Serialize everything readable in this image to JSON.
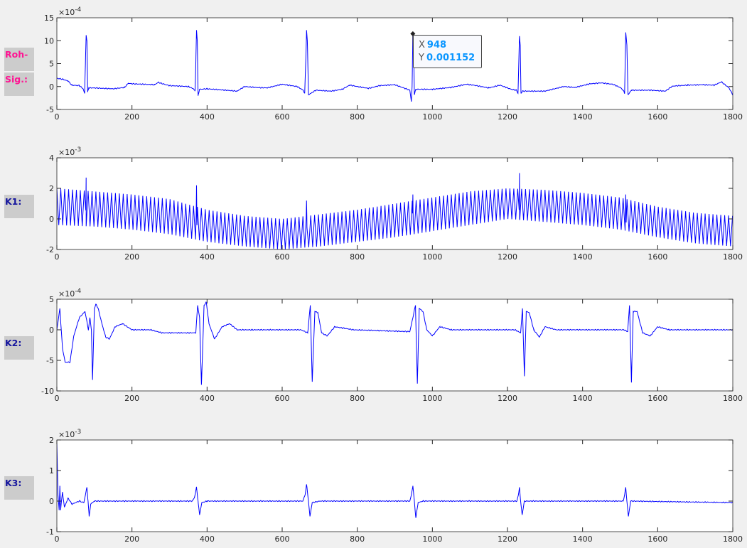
{
  "labels": {
    "raw_1": "Roh-",
    "raw_2": "Sig.:",
    "k1": "K1:",
    "k2": "K2:",
    "k3": "K3:"
  },
  "colors": {
    "line": "#0000ff",
    "raw_label": "#ff1493",
    "k_label": "#14149e",
    "tooltip_value": "#0a96ff"
  },
  "tooltip": {
    "x_label": "X",
    "x_value": "948",
    "y_label": "Y",
    "y_value": "0.001152"
  },
  "chart_data": [
    {
      "type": "line",
      "name": "raw",
      "exponent_label": "×10",
      "exponent": "-4",
      "xlim": [
        0,
        1800
      ],
      "ylim": [
        -5,
        15
      ],
      "xticks": [
        "0",
        "200",
        "400",
        "600",
        "800",
        "1000",
        "1200",
        "1400",
        "1600",
        "1800"
      ],
      "yticks": [
        "-5",
        "0",
        "5",
        "10",
        "15"
      ],
      "grid": false,
      "points": [
        [
          0,
          1.8
        ],
        [
          15,
          1.6
        ],
        [
          30,
          1.2
        ],
        [
          40,
          0.3
        ],
        [
          60,
          0.2
        ],
        [
          70,
          -0.5
        ],
        [
          74,
          -1.5
        ],
        [
          76,
          5
        ],
        [
          78,
          11.2
        ],
        [
          80,
          10
        ],
        [
          82,
          -1.2
        ],
        [
          85,
          -0.3
        ],
        [
          100,
          -0.3
        ],
        [
          150,
          -0.5
        ],
        [
          180,
          -0.2
        ],
        [
          190,
          0.7
        ],
        [
          200,
          0.6
        ],
        [
          230,
          0.5
        ],
        [
          260,
          0.4
        ],
        [
          270,
          0.9
        ],
        [
          290,
          0.4
        ],
        [
          300,
          0.2
        ],
        [
          350,
          0
        ],
        [
          364,
          -0.5
        ],
        [
          368,
          -1
        ],
        [
          370,
          5
        ],
        [
          372,
          12.3
        ],
        [
          374,
          10
        ],
        [
          376,
          -2
        ],
        [
          380,
          -0.6
        ],
        [
          400,
          -0.5
        ],
        [
          450,
          -0.8
        ],
        [
          480,
          -1
        ],
        [
          500,
          0
        ],
        [
          530,
          -0.2
        ],
        [
          560,
          -0.3
        ],
        [
          600,
          0.5
        ],
        [
          640,
          0
        ],
        [
          656,
          -0.8
        ],
        [
          660,
          -1.5
        ],
        [
          663,
          6
        ],
        [
          665,
          12.3
        ],
        [
          667,
          10
        ],
        [
          670,
          -1.8
        ],
        [
          690,
          -0.8
        ],
        [
          730,
          -1
        ],
        [
          760,
          -0.6
        ],
        [
          780,
          0.3
        ],
        [
          800,
          0
        ],
        [
          830,
          -0.4
        ],
        [
          860,
          0.2
        ],
        [
          900,
          0.4
        ],
        [
          940,
          -0.8
        ],
        [
          944,
          -3.3
        ],
        [
          946,
          0
        ],
        [
          948,
          11.52
        ],
        [
          950,
          10
        ],
        [
          952,
          -1.8
        ],
        [
          956,
          -0.6
        ],
        [
          1000,
          -0.6
        ],
        [
          1050,
          -0.2
        ],
        [
          1090,
          0.5
        ],
        [
          1110,
          0.3
        ],
        [
          1150,
          -0.3
        ],
        [
          1180,
          0.3
        ],
        [
          1210,
          -0.6
        ],
        [
          1224,
          -0.8
        ],
        [
          1228,
          -1.5
        ],
        [
          1230,
          5
        ],
        [
          1232,
          11
        ],
        [
          1234,
          9
        ],
        [
          1236,
          -1.5
        ],
        [
          1240,
          -1
        ],
        [
          1300,
          -1
        ],
        [
          1350,
          0
        ],
        [
          1380,
          -0.2
        ],
        [
          1400,
          0.2
        ],
        [
          1420,
          0.6
        ],
        [
          1450,
          0.8
        ],
        [
          1480,
          0.5
        ],
        [
          1500,
          -0.2
        ],
        [
          1508,
          -0.8
        ],
        [
          1512,
          -1.5
        ],
        [
          1515,
          11.8
        ],
        [
          1518,
          9
        ],
        [
          1521,
          -1.8
        ],
        [
          1530,
          -0.8
        ],
        [
          1580,
          -0.8
        ],
        [
          1620,
          -1
        ],
        [
          1640,
          0.1
        ],
        [
          1680,
          0.3
        ],
        [
          1720,
          0.4
        ],
        [
          1750,
          0.3
        ],
        [
          1770,
          1
        ],
        [
          1790,
          -0.3
        ],
        [
          1800,
          -1.8
        ]
      ]
    },
    {
      "type": "line",
      "name": "K1",
      "exponent_label": "×10",
      "exponent": "-3",
      "xlim": [
        0,
        1800
      ],
      "ylim": [
        -2,
        4
      ],
      "xticks": [
        "0",
        "200",
        "400",
        "600",
        "800",
        "1000",
        "1200",
        "1400",
        "1600",
        "1800"
      ],
      "yticks": [
        "-2",
        "0",
        "2",
        "4"
      ],
      "grid": false,
      "envelope_x": [
        0,
        100,
        200,
        300,
        400,
        500,
        600,
        700,
        800,
        900,
        1000,
        1100,
        1200,
        1300,
        1400,
        1500,
        1600,
        1700,
        1800
      ],
      "envelope_upper": [
        2.0,
        1.8,
        1.6,
        1.3,
        0.6,
        0.2,
        0.0,
        0.3,
        0.6,
        1.0,
        1.4,
        1.8,
        2.0,
        1.9,
        1.7,
        1.4,
        0.8,
        0.4,
        0.2
      ],
      "envelope_lower": [
        -0.4,
        -0.5,
        -0.7,
        -1.0,
        -1.5,
        -1.8,
        -2.0,
        -1.8,
        -1.5,
        -1.2,
        -0.8,
        -0.4,
        0.0,
        -0.2,
        -0.4,
        -0.7,
        -1.2,
        -1.6,
        -1.8
      ],
      "spikes": [
        [
          78,
          2.7
        ],
        [
          372,
          2.2
        ],
        [
          665,
          1.2
        ],
        [
          948,
          1.6
        ],
        [
          1232,
          3.0
        ],
        [
          1515,
          1.6
        ]
      ]
    },
    {
      "type": "line",
      "name": "K2",
      "exponent_label": "×10",
      "exponent": "-4",
      "xlim": [
        0,
        1800
      ],
      "ylim": [
        -10,
        5
      ],
      "xticks": [
        "0",
        "200",
        "400",
        "600",
        "800",
        "1000",
        "1200",
        "1400",
        "1600",
        "1800"
      ],
      "yticks": [
        "-10",
        "-5",
        "0",
        "5"
      ],
      "grid": false,
      "points": [
        [
          0,
          0
        ],
        [
          8,
          3.5
        ],
        [
          15,
          -3
        ],
        [
          22,
          -5.3
        ],
        [
          35,
          -5.3
        ],
        [
          45,
          -1
        ],
        [
          60,
          2
        ],
        [
          75,
          3
        ],
        [
          84,
          0
        ],
        [
          88,
          2
        ],
        [
          92,
          0
        ],
        [
          95,
          -8.2
        ],
        [
          100,
          3.5
        ],
        [
          104,
          4.2
        ],
        [
          110,
          3.5
        ],
        [
          120,
          1
        ],
        [
          130,
          -1.2
        ],
        [
          140,
          -1.5
        ],
        [
          155,
          0.5
        ],
        [
          175,
          1
        ],
        [
          200,
          0
        ],
        [
          250,
          0
        ],
        [
          280,
          -0.5
        ],
        [
          370,
          -0.5
        ],
        [
          375,
          4
        ],
        [
          380,
          2
        ],
        [
          385,
          -9
        ],
        [
          392,
          4
        ],
        [
          398,
          4.5
        ],
        [
          405,
          1
        ],
        [
          420,
          -1.5
        ],
        [
          440,
          0.5
        ],
        [
          460,
          1
        ],
        [
          480,
          0
        ],
        [
          520,
          0
        ],
        [
          650,
          0
        ],
        [
          668,
          -0.5
        ],
        [
          675,
          4
        ],
        [
          680,
          -8.5
        ],
        [
          687,
          3
        ],
        [
          695,
          2.8
        ],
        [
          705,
          -0.5
        ],
        [
          720,
          -1
        ],
        [
          740,
          0.5
        ],
        [
          760,
          0.3
        ],
        [
          790,
          0
        ],
        [
          940,
          -0.3
        ],
        [
          955,
          4
        ],
        [
          960,
          -8.8
        ],
        [
          965,
          3.5
        ],
        [
          975,
          3
        ],
        [
          985,
          0
        ],
        [
          1000,
          -1
        ],
        [
          1020,
          0.5
        ],
        [
          1050,
          0
        ],
        [
          1220,
          0
        ],
        [
          1235,
          -0.5
        ],
        [
          1240,
          3.5
        ],
        [
          1245,
          -7.6
        ],
        [
          1250,
          3
        ],
        [
          1258,
          2.8
        ],
        [
          1270,
          0
        ],
        [
          1285,
          -1.2
        ],
        [
          1300,
          0.5
        ],
        [
          1330,
          0
        ],
        [
          1510,
          0
        ],
        [
          1520,
          -0.3
        ],
        [
          1525,
          4
        ],
        [
          1530,
          -8.6
        ],
        [
          1535,
          3
        ],
        [
          1545,
          3
        ],
        [
          1560,
          -0.5
        ],
        [
          1580,
          -1
        ],
        [
          1600,
          0.5
        ],
        [
          1630,
          0
        ],
        [
          1800,
          0
        ]
      ]
    },
    {
      "type": "line",
      "name": "K3",
      "exponent_label": "×10",
      "exponent": "-3",
      "xlim": [
        0,
        1800
      ],
      "ylim": [
        -1,
        2
      ],
      "xticks": [
        "0",
        "200",
        "400",
        "600",
        "800",
        "1000",
        "1200",
        "1400",
        "1600",
        "1800"
      ],
      "yticks": [
        "-1",
        "0",
        "1",
        "2"
      ],
      "grid": false,
      "points": [
        [
          0,
          1.9
        ],
        [
          3,
          0.2
        ],
        [
          6,
          -0.3
        ],
        [
          8,
          0.5
        ],
        [
          10,
          -0.3
        ],
        [
          15,
          0.3
        ],
        [
          20,
          -0.2
        ],
        [
          30,
          0.1
        ],
        [
          40,
          -0.1
        ],
        [
          60,
          0
        ],
        [
          72,
          -0.05
        ],
        [
          76,
          0.2
        ],
        [
          80,
          0.45
        ],
        [
          83,
          0
        ],
        [
          86,
          -0.5
        ],
        [
          90,
          -0.1
        ],
        [
          100,
          0
        ],
        [
          360,
          0
        ],
        [
          366,
          0.1
        ],
        [
          372,
          0.45
        ],
        [
          376,
          0
        ],
        [
          380,
          -0.45
        ],
        [
          386,
          -0.05
        ],
        [
          400,
          0
        ],
        [
          655,
          0
        ],
        [
          661,
          0.2
        ],
        [
          665,
          0.55
        ],
        [
          670,
          0
        ],
        [
          674,
          -0.5
        ],
        [
          680,
          -0.05
        ],
        [
          700,
          0
        ],
        [
          940,
          0
        ],
        [
          944,
          0.2
        ],
        [
          948,
          0.5
        ],
        [
          952,
          0
        ],
        [
          956,
          -0.55
        ],
        [
          962,
          -0.05
        ],
        [
          975,
          0
        ],
        [
          1225,
          0
        ],
        [
          1229,
          0.2
        ],
        [
          1232,
          0.45
        ],
        [
          1235,
          0
        ],
        [
          1239,
          -0.45
        ],
        [
          1245,
          0
        ],
        [
          1508,
          0
        ],
        [
          1512,
          0.2
        ],
        [
          1515,
          0.45
        ],
        [
          1518,
          0
        ],
        [
          1522,
          -0.5
        ],
        [
          1528,
          0
        ],
        [
          1800,
          -0.05
        ]
      ]
    }
  ]
}
